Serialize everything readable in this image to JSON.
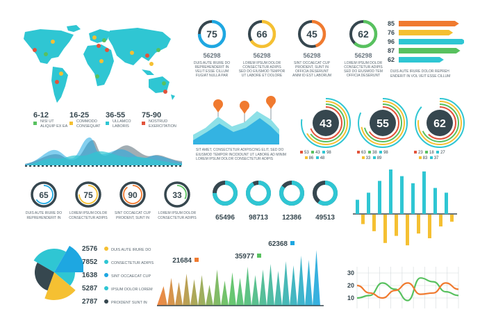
{
  "colors": {
    "teal": "#2fc6d3",
    "blue": "#1ea7e1",
    "orange": "#f07a2f",
    "yellow": "#f5c032",
    "green": "#58c15f",
    "red": "#e2533b",
    "navy": "#36474f",
    "grey": "#6b7780"
  },
  "map_legend": {
    "items": [
      {
        "range": "6-12",
        "color": "#58c15f",
        "lines": [
          "NISI UT",
          "ALIQUIP EX EA"
        ]
      },
      {
        "range": "16-25",
        "color": "#f5c032",
        "lines": [
          "COMMODO",
          "CONSEQUAT"
        ]
      },
      {
        "range": "36-55",
        "color": "#2fc6d3",
        "lines": [
          "ULLAMCO",
          "LABORIS"
        ]
      },
      {
        "range": "75-90",
        "color": "#e2533b",
        "lines": [
          "NOSTRUD",
          "EXERCITATION"
        ]
      }
    ]
  },
  "top_gauges": [
    {
      "value": "75",
      "color": "#1ea7e1",
      "number": "56298",
      "lines": [
        "DUIS AUTE IRURE DO",
        "REPREHENDERIT IN",
        "VELIT ESSE CILLUM",
        "FUGIAT NULLA PAR"
      ]
    },
    {
      "value": "66",
      "color": "#f5c032",
      "number": "56298",
      "lines": [
        "LOREM IPSUM DOLOR",
        "CONSECTETUR ADIPIS",
        "SED DO EIUSMOD TEMPOR",
        "UT LABORE ET DOLORE"
      ]
    },
    {
      "value": "45",
      "color": "#f07a2f",
      "number": "56298",
      "lines": [
        "SINT OCCAECAT CUP",
        "PROIDENT, SUNT IN",
        "OFFICIA DESERUNT",
        "ANIM ID EST LABORUM"
      ]
    },
    {
      "value": "62",
      "color": "#58c15f",
      "number": "56298",
      "lines": [
        "LOREM IPSUM DOLOR",
        "CONSECTETUR ADIPIS",
        "SED DO EIUSMOD TEM",
        "OFFICIA DESERUNT"
      ]
    }
  ],
  "arrow_note": [
    "DUIS AUTE IRURE DOLOR REPREH",
    "ENDERIT IN VOL VEIT ESSE CILLUM"
  ],
  "area_note": [
    "SIT AMET, CONSECTETUR ADIPISCING ELIT,  SED DO",
    "EIUSMOD TEMPOR INCIDIDUNT UT LABORE AD MINIM",
    "LOREM IPSUM DOLOR  CONSECTETUR ADIPIS"
  ],
  "ring_gauges": [
    {
      "value": "43",
      "legend": [
        {
          "v": "53",
          "c": "#e2533b"
        },
        {
          "v": "43",
          "c": "#58c15f"
        },
        {
          "v": "98",
          "c": "#2fc6d3"
        },
        {
          "v": "86",
          "c": "#f5c032"
        },
        {
          "v": "48",
          "c": "#2fc6d3"
        }
      ]
    },
    {
      "value": "55",
      "legend": [
        {
          "v": "63",
          "c": "#e2533b"
        },
        {
          "v": "38",
          "c": "#58c15f"
        },
        {
          "v": "98",
          "c": "#2fc6d3"
        },
        {
          "v": "33",
          "c": "#f5c032"
        },
        {
          "v": "89",
          "c": "#2fc6d3"
        }
      ]
    },
    {
      "value": "62",
      "legend": [
        {
          "v": "23",
          "c": "#e2533b"
        },
        {
          "v": "18",
          "c": "#58c15f"
        },
        {
          "v": "27",
          "c": "#2fc6d3"
        },
        {
          "v": "83",
          "c": "#f5c032"
        },
        {
          "v": "37",
          "c": "#2fc6d3"
        }
      ]
    }
  ],
  "small_gauges": [
    {
      "value": "65",
      "color": "#1ea7e1",
      "lines": [
        "DUIS AUTE IRURE DO",
        "REPREHENDERIT IN"
      ]
    },
    {
      "value": "75",
      "color": "#f5c032",
      "lines": [
        "LOREM IPSUM DOLOR",
        "CONSECTETUR ADIPIS"
      ]
    },
    {
      "value": "90",
      "color": "#f07a2f",
      "lines": [
        "SINT OCCAECAT CUP",
        "PROIDENT, SUNT IN"
      ]
    },
    {
      "value": "33",
      "color": "#58c15f",
      "lines": [
        "LOREM IPSUM DOLOR",
        "CONSECTETUR ADIPIS"
      ]
    }
  ],
  "chart_data": [
    {
      "type": "bar",
      "title": "",
      "categories": [
        "85",
        "76",
        "96",
        "87",
        "62"
      ],
      "values": [
        85,
        76,
        96,
        87,
        62
      ],
      "colors": [
        "#f07a2f",
        "#f5c032",
        "#2fc6d3",
        "#58c15f",
        "#2fc6d3"
      ]
    },
    {
      "type": "pie",
      "title": "",
      "donut": true,
      "values": [
        65496,
        98713,
        12386,
        49513
      ],
      "labels": [
        "65496",
        "98713",
        "12386",
        "49513"
      ],
      "percents": [
        75,
        92,
        85,
        60
      ]
    },
    {
      "type": "pie",
      "title": "",
      "labels": [
        "DUIS AUTE IRURE DO",
        "CONSECTETUR ADIPIS",
        "SINT OCCAECAT CUP",
        "IPSUM DOLOR LOREM",
        "PROIDENT SUNT IN"
      ],
      "values": [
        2576,
        7852,
        1638,
        5287,
        2787
      ],
      "colors": [
        "#f5c032",
        "#2fc6d3",
        "#1ea7e1",
        "#2fc6d3",
        "#36474f"
      ]
    },
    {
      "type": "area",
      "title": "",
      "labels": [
        "21684",
        "35977",
        "62368"
      ],
      "values": [
        21684,
        35977,
        62368
      ]
    },
    {
      "type": "line",
      "title": "",
      "yticks": [
        "30",
        "20",
        "10"
      ],
      "ylim": [
        5,
        35
      ],
      "series": [
        {
          "color": "#58c15f",
          "values": [
            10,
            12,
            22,
            17,
            8,
            26,
            23,
            15,
            12
          ]
        },
        {
          "color": "#f07a2f",
          "values": [
            20,
            14,
            10,
            16,
            22,
            13,
            14,
            22,
            17
          ]
        }
      ]
    },
    {
      "type": "bar",
      "title": "",
      "values": [
        6,
        -4,
        9,
        -7,
        14,
        -12,
        19,
        -9,
        16,
        -13,
        13,
        -8,
        18,
        -10,
        11,
        -5,
        9,
        -3
      ],
      "colors": [
        "#2fc6d3",
        "#f5c032"
      ]
    }
  ]
}
